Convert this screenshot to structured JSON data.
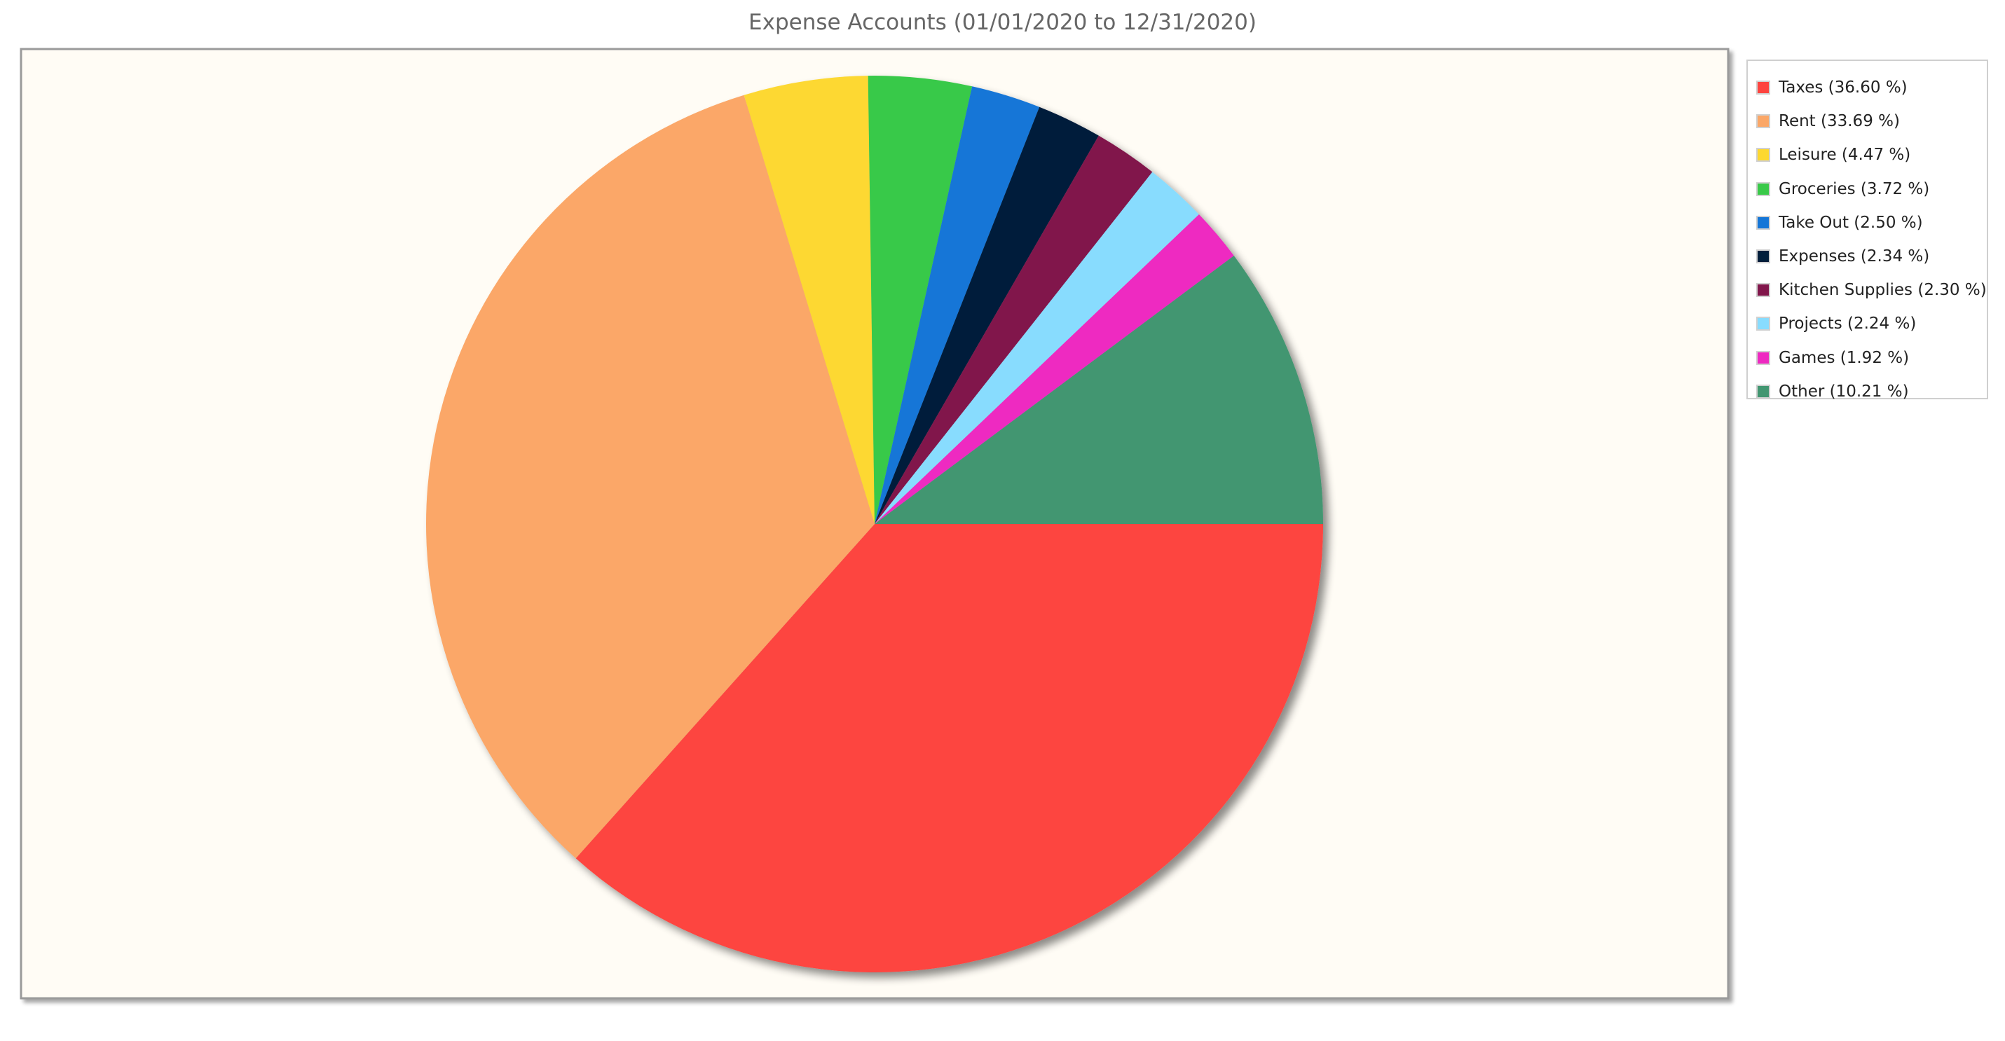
{
  "chart_data": {
    "type": "pie",
    "title": "Expense Accounts (01/01/2020 to 12/31/2020)",
    "legend_position": "right",
    "background": "#fffcf5",
    "slices": [
      {
        "label": "Taxes",
        "value": 36.6,
        "legend": "Taxes (36.60 %)",
        "color": "#fd443f"
      },
      {
        "label": "Rent",
        "value": 33.69,
        "legend": "Rent (33.69 %)",
        "color": "#fba767"
      },
      {
        "label": "Leisure",
        "value": 4.47,
        "legend": "Leisure (4.47 %)",
        "color": "#fdd830"
      },
      {
        "label": "Groceries",
        "value": 3.72,
        "legend": "Groceries (3.72 %)",
        "color": "#39c949"
      },
      {
        "label": "Take Out",
        "value": 2.5,
        "legend": "Take Out (2.50 %)",
        "color": "#1576d7"
      },
      {
        "label": "Expenses",
        "value": 2.34,
        "legend": "Expenses (2.34 %)",
        "color": "#011e3b"
      },
      {
        "label": "Kitchen Supplies",
        "value": 2.3,
        "legend": "Kitchen Supplies (2.30 %)",
        "color": "#81164b"
      },
      {
        "label": "Projects",
        "value": 2.24,
        "legend": "Projects (2.24 %)",
        "color": "#88dcfe"
      },
      {
        "label": "Games",
        "value": 1.92,
        "legend": "Games (1.92 %)",
        "color": "#ee29c1"
      },
      {
        "label": "Other",
        "value": 10.21,
        "legend": "Other (10.21 %)",
        "color": "#429671"
      }
    ]
  }
}
